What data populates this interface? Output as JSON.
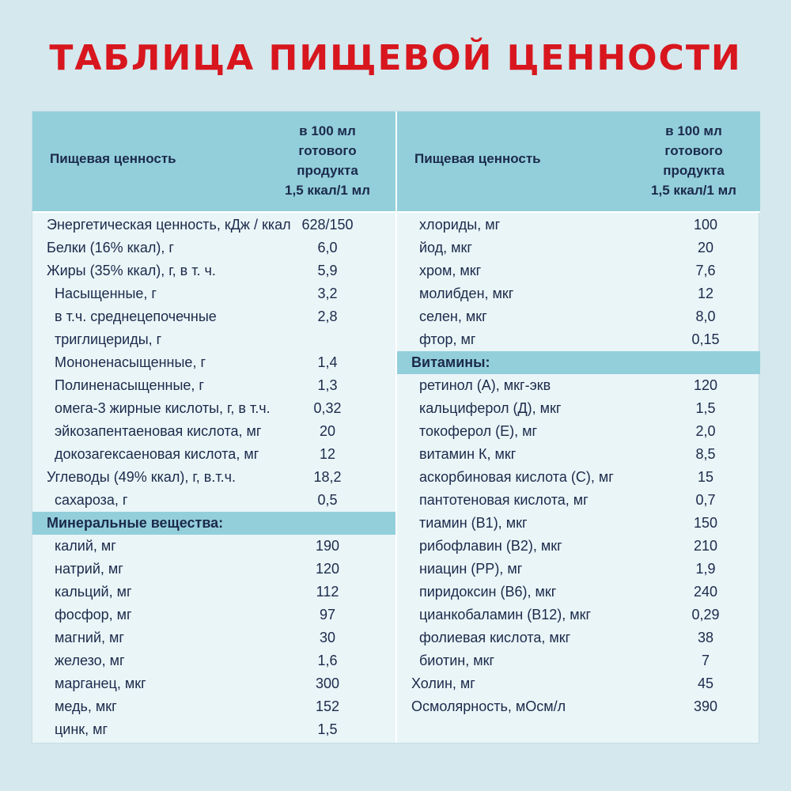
{
  "title": "ТАБЛИЦА ПИЩЕВОЙ ЦЕННОСТИ",
  "header": {
    "name": "Пищевая ценность",
    "unit_lines": [
      "в 100 мл",
      "готового",
      "продукта",
      "1,5 ккал/1 мл"
    ]
  },
  "left": [
    {
      "name": "Энергетическая ценность, кДж / ккал",
      "value": "628/150"
    },
    {
      "name": "Белки (16% ккал), г",
      "value": "6,0"
    },
    {
      "name": "Жиры (35% ккал), г, в т. ч.",
      "value": "5,9"
    },
    {
      "name": "Насыщенные, г",
      "value": "3,2",
      "indent": true
    },
    {
      "name": "в т.ч. среднецепочечные триглицериды, г",
      "value": "2,8",
      "indent": true,
      "tall": true
    },
    {
      "name": "Мононенасыщенные, г",
      "value": "1,4",
      "indent": true
    },
    {
      "name": "Полиненасыщенные, г",
      "value": "1,3",
      "indent": true
    },
    {
      "name": "омега-3 жирные кислоты, г, в т.ч.",
      "value": "0,32",
      "indent": true
    },
    {
      "name": "эйкозапентаеновая кислота, мг",
      "value": "20",
      "indent": true
    },
    {
      "name": "докозагексаеновая кислота, мг",
      "value": "12",
      "indent": true
    },
    {
      "name": "Углеводы (49% ккал), г, в.т.ч.",
      "value": "18,2"
    },
    {
      "name": "сахароза, г",
      "value": "0,5",
      "indent": true
    },
    {
      "name": "Минеральные вещества:",
      "value": "",
      "section": true
    },
    {
      "name": "калий, мг",
      "value": "190",
      "indent": true
    },
    {
      "name": "натрий, мг",
      "value": "120",
      "indent": true
    },
    {
      "name": "кальций, мг",
      "value": "112",
      "indent": true
    },
    {
      "name": "фосфор, мг",
      "value": "97",
      "indent": true
    },
    {
      "name": "магний, мг",
      "value": "30",
      "indent": true
    },
    {
      "name": "железо, мг",
      "value": "1,6",
      "indent": true
    },
    {
      "name": "марганец, мкг",
      "value": "300",
      "indent": true
    },
    {
      "name": "медь, мкг",
      "value": "152",
      "indent": true
    },
    {
      "name": "цинк, мг",
      "value": "1,5",
      "indent": true
    }
  ],
  "right": [
    {
      "name": "хлориды, мг",
      "value": "100",
      "indent": true
    },
    {
      "name": "йод, мкг",
      "value": "20",
      "indent": true
    },
    {
      "name": "хром, мкг",
      "value": "7,6",
      "indent": true
    },
    {
      "name": "молибден, мкг",
      "value": "12",
      "indent": true
    },
    {
      "name": "селен, мкг",
      "value": "8,0",
      "indent": true
    },
    {
      "name": "фтор, мг",
      "value": "0,15",
      "indent": true
    },
    {
      "name": "Витамины:",
      "value": "",
      "section": true
    },
    {
      "name": "ретинол (А), мкг-экв",
      "value": "120",
      "indent": true
    },
    {
      "name": "кальциферол (Д), мкг",
      "value": "1,5",
      "indent": true
    },
    {
      "name": "токоферол (Е), мг",
      "value": "2,0",
      "indent": true
    },
    {
      "name": "витамин К, мкг",
      "value": "8,5",
      "indent": true
    },
    {
      "name": "аскорбиновая кислота (С), мг",
      "value": "15",
      "indent": true
    },
    {
      "name": "пантотеновая кислота, мг",
      "value": "0,7",
      "indent": true
    },
    {
      "name": "тиамин (В1), мкг",
      "value": "150",
      "indent": true
    },
    {
      "name": "рибофлавин (В2), мкг",
      "value": "210",
      "indent": true
    },
    {
      "name": "ниацин (РР), мг",
      "value": "1,9",
      "indent": true
    },
    {
      "name": "пиридоксин (В6), мкг",
      "value": "240",
      "indent": true
    },
    {
      "name": "цианкобаламин (В12), мкг",
      "value": "0,29",
      "indent": true
    },
    {
      "name": "фолиевая кислота, мкг",
      "value": "38",
      "indent": true
    },
    {
      "name": "биотин, мкг",
      "value": "7",
      "indent": true
    },
    {
      "name": "Холин, мг",
      "value": "45"
    },
    {
      "name": "Осмолярность, мОсм/л",
      "value": "390"
    }
  ]
}
